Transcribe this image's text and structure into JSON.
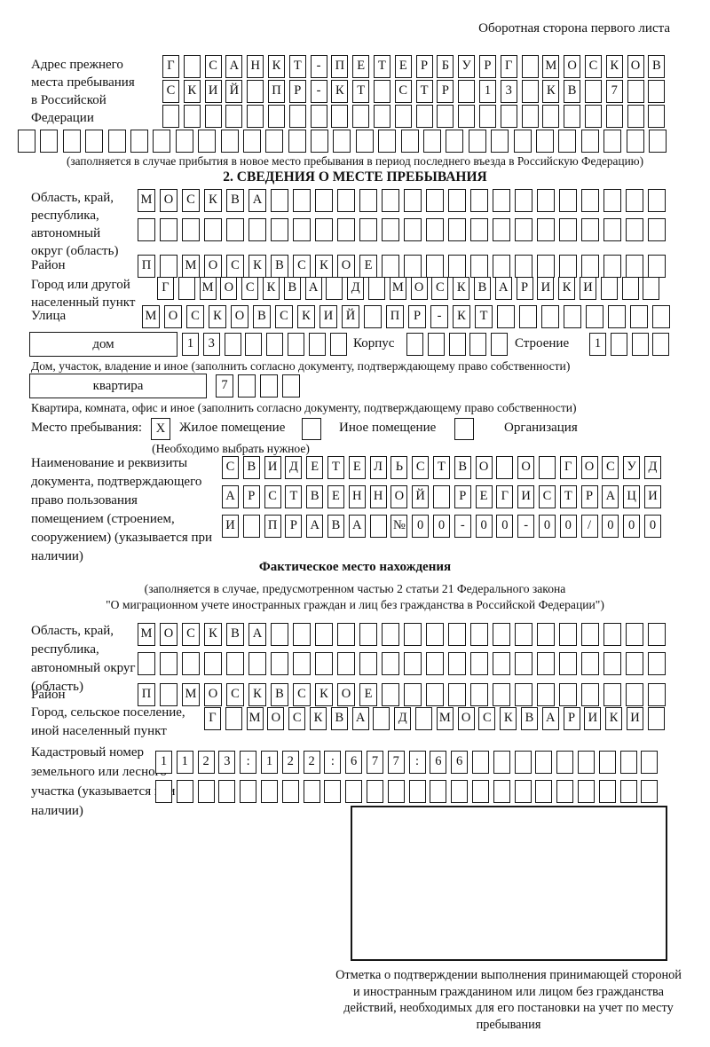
{
  "page": {
    "side_note": "Оборотная сторона первого листа"
  },
  "prev_address": {
    "label": "Адрес прежнего места пребывания в Российской Федерации",
    "rows": [
      {
        "count": 24,
        "value": "Г САНКТ-ПЕТЕРБУРГ МОСКОВ"
      },
      {
        "count": 24,
        "value": "СКИЙ ПР-КТ СТР 13 КВ 7"
      },
      {
        "count": 24,
        "value": ""
      },
      {
        "count": 29,
        "value": ""
      }
    ],
    "note": "(заполняется в случае прибытия в новое место пребывания в период последнего въезда в Российскую Федерацию)"
  },
  "section2": {
    "title": "2. СВЕДЕНИЯ О МЕСТЕ ПРЕБЫВАНИЯ",
    "region": {
      "label": "Область, край, республика, автономный округ (область)",
      "rows": [
        {
          "count": 24,
          "value": "МОСКВА"
        },
        {
          "count": 24,
          "value": ""
        }
      ]
    },
    "district": {
      "label": "Район",
      "row": {
        "count": 24,
        "value": "П МОСКВСКОЕ"
      }
    },
    "city": {
      "label": "Город или другой населенный пункт",
      "row": {
        "count": 24,
        "value": "Г МОСКВА Д МОСКВАРИКИ"
      }
    },
    "street": {
      "label": "Улица",
      "row": {
        "count": 24,
        "value": "МОСКОВСКИЙ ПР-КТ"
      }
    },
    "house": {
      "label": "дом",
      "cells": {
        "count": 8,
        "value": "13"
      },
      "korpus_label": "Корпус",
      "korpus_cells": {
        "count": 5,
        "value": ""
      },
      "stroenie_label": "Строение",
      "stroenie_cells": {
        "count": 4,
        "value": "1"
      }
    },
    "house_note": "Дом, участок, владение и иное (заполнить согласно документу, подтверждающему право собственности)",
    "apartment": {
      "label": "квартира",
      "cells": {
        "count": 4,
        "value": "7"
      }
    },
    "apartment_note": "Квартира, комната, офис и иное (заполнить согласно документу, подтверждающему право собственности)",
    "stay_type": {
      "label": "Место пребывания:",
      "options": [
        {
          "label": "Жилое помещение",
          "checked": "X"
        },
        {
          "label": "Иное помещение",
          "checked": ""
        },
        {
          "label": "Организация",
          "checked": ""
        }
      ],
      "note": "(Необходимо выбрать нужное)"
    },
    "document": {
      "label": "Наименование и реквизиты документа, подтверждающего право пользования помещением (строением, сооружением) (указывается при наличии)",
      "rows": [
        {
          "count": 21,
          "value": "СВИДЕТЕЛЬСТВО О ГОСУД"
        },
        {
          "count": 21,
          "value": "АРСТВЕННОЙ РЕГИСТРАЦИ"
        },
        {
          "count": 21,
          "value": "И ПРАВА №00-00-00/000"
        }
      ]
    }
  },
  "actual_location": {
    "title": "Фактическое место нахождения",
    "note_line1": "(заполняется в случае, предусмотренном частью 2 статьи 21 Федерального закона",
    "note_line2": "\"О миграционном учете иностранных граждан и лиц без гражданства в Российской Федерации\")",
    "region": {
      "label": "Область, край, республика, автономный округ (область)",
      "rows": [
        {
          "count": 24,
          "value": "МОСКВА"
        },
        {
          "count": 24,
          "value": ""
        }
      ]
    },
    "district": {
      "label": "Район",
      "row": {
        "count": 24,
        "value": "П МОСКВСКОЕ"
      }
    },
    "city": {
      "label": "Город, сельское поселение, иной населенный пункт",
      "row": {
        "count": 22,
        "value": "Г МОСКВА Д МОСКВАРИКИ"
      }
    },
    "cadastral": {
      "label": "Кадастровый номер земельного или лесного участка (указывается при наличии)",
      "rows": [
        {
          "count": 24,
          "value": "1123:122:677:66"
        },
        {
          "count": 24,
          "value": ""
        }
      ]
    },
    "stamp_box_note": "Отметка о подтверждении выполнения принимающей стороной и иностранным гражданином или лицом без гражданства действий, необходимых для его постановки на учет по месту пребывания"
  }
}
